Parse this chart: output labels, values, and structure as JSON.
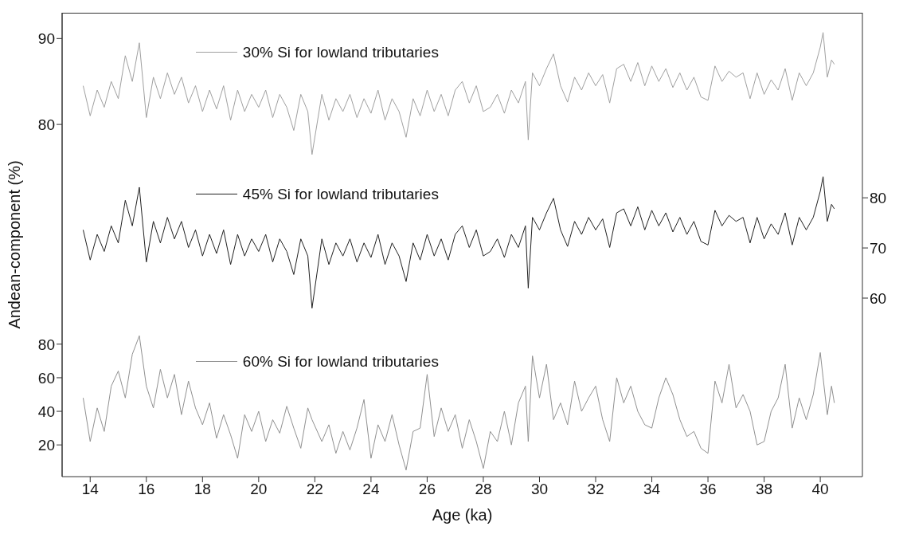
{
  "chart_data": {
    "type": "line",
    "xlabel": "Age (ka)",
    "ylabel": "Andean-component (%)",
    "xlim": [
      13,
      41.5
    ],
    "xticks": [
      14,
      16,
      18,
      20,
      22,
      24,
      26,
      28,
      30,
      32,
      34,
      36,
      38,
      40
    ],
    "ylim": [
      39,
      93
    ],
    "yticks": [
      80,
      90
    ],
    "y2lim": [
      24.4,
      116.9
    ],
    "y2ticks": [
      60,
      70,
      80
    ],
    "y3lim": [
      1.1,
      277.4
    ],
    "y3ticks": [
      20,
      40,
      60,
      80
    ],
    "legend": "top left",
    "series": [
      {
        "name": "30% Si for lowland tributaries",
        "color": "#a0a0a0",
        "axis": "y",
        "x": [
          13.75,
          14,
          14.25,
          14.5,
          14.75,
          15,
          15.25,
          15.5,
          15.75,
          16,
          16.25,
          16.5,
          16.75,
          17,
          17.25,
          17.5,
          17.75,
          18,
          18.25,
          18.5,
          18.75,
          19,
          19.25,
          19.5,
          19.75,
          20,
          20.25,
          20.5,
          20.75,
          21,
          21.25,
          21.5,
          21.75,
          21.9,
          22.25,
          22.5,
          22.75,
          23,
          23.25,
          23.5,
          23.75,
          24,
          24.25,
          24.5,
          24.75,
          25,
          25.25,
          25.5,
          25.75,
          26,
          26.25,
          26.5,
          26.75,
          27,
          27.25,
          27.5,
          27.75,
          28,
          28.25,
          28.5,
          28.75,
          29,
          29.25,
          29.5,
          29.6,
          29.75,
          30,
          30.25,
          30.5,
          30.75,
          31,
          31.25,
          31.5,
          31.75,
          32,
          32.25,
          32.5,
          32.75,
          33,
          33.25,
          33.5,
          33.75,
          34,
          34.25,
          34.5,
          34.75,
          35,
          35.25,
          35.5,
          35.75,
          36,
          36.25,
          36.5,
          36.75,
          37,
          37.25,
          37.5,
          37.75,
          38,
          38.25,
          38.5,
          38.75,
          39,
          39.25,
          39.5,
          39.75,
          40,
          40.1,
          40.25,
          40.4,
          40.5
        ],
        "values": [
          84.5,
          81,
          84,
          82,
          85,
          83,
          88,
          85,
          89.5,
          80.8,
          85.5,
          83,
          86,
          83.5,
          85.5,
          82.5,
          84.5,
          81.5,
          84,
          81.8,
          84.5,
          80.5,
          84,
          81.5,
          83.5,
          82,
          84,
          80.8,
          83.5,
          82,
          79.3,
          83.5,
          81.5,
          76.5,
          83.5,
          80.5,
          83,
          81.5,
          83.5,
          80.8,
          83,
          81.3,
          84,
          80.5,
          83,
          81.5,
          78.5,
          83,
          81,
          84,
          81.5,
          83.5,
          81,
          84,
          85,
          82.5,
          84.5,
          81.5,
          82,
          83.5,
          81.3,
          84,
          82.5,
          85,
          78.2,
          86,
          84.5,
          86.5,
          88.2,
          84.5,
          82.6,
          85.5,
          84,
          86,
          84.5,
          85.8,
          82.5,
          86.5,
          87,
          85,
          87.2,
          84.5,
          86.8,
          85,
          86.5,
          84.3,
          86,
          84,
          85.5,
          83.2,
          82.8,
          86.8,
          85,
          86.2,
          85.5,
          86,
          83,
          86,
          83.5,
          85.2,
          84,
          86.5,
          82.8,
          86,
          84.5,
          86,
          89,
          90.7,
          85.5,
          87.5,
          87
        ]
      },
      {
        "name": "45% Si for lowland tributaries",
        "color": "#202020",
        "axis": "y2",
        "x": [
          13.75,
          14,
          14.25,
          14.5,
          14.75,
          15,
          15.25,
          15.5,
          15.75,
          16,
          16.25,
          16.5,
          16.75,
          17,
          17.25,
          17.5,
          17.75,
          18,
          18.25,
          18.5,
          18.75,
          19,
          19.25,
          19.5,
          19.75,
          20,
          20.25,
          20.5,
          20.75,
          21,
          21.25,
          21.5,
          21.75,
          21.9,
          22.25,
          22.5,
          22.75,
          23,
          23.25,
          23.5,
          23.75,
          24,
          24.25,
          24.5,
          24.75,
          25,
          25.25,
          25.5,
          25.75,
          26,
          26.25,
          26.5,
          26.75,
          27,
          27.25,
          27.5,
          27.75,
          28,
          28.25,
          28.5,
          28.75,
          29,
          29.25,
          29.5,
          29.6,
          29.75,
          30,
          30.25,
          30.5,
          30.75,
          31,
          31.25,
          31.5,
          31.75,
          32,
          32.25,
          32.5,
          32.75,
          33,
          33.25,
          33.5,
          33.75,
          34,
          34.25,
          34.5,
          34.75,
          35,
          35.25,
          35.5,
          35.75,
          36,
          36.25,
          36.5,
          36.75,
          37,
          37.25,
          37.5,
          37.75,
          38,
          38.25,
          38.5,
          38.75,
          39,
          39.25,
          39.5,
          39.75,
          40,
          40.1,
          40.25,
          40.4,
          40.5
        ],
        "values": [
          73.6,
          67.6,
          72.7,
          69.3,
          74.4,
          71,
          79.5,
          74.4,
          82.1,
          67.2,
          75.3,
          71,
          76.1,
          71.8,
          75.3,
          70.1,
          73.6,
          68.4,
          72.7,
          68.9,
          73.6,
          66.7,
          72.7,
          68.4,
          71.8,
          69.3,
          72.7,
          67.2,
          71.8,
          69.3,
          64.7,
          71.8,
          68.4,
          58,
          71.8,
          66.7,
          71,
          68.4,
          71.8,
          67.2,
          71,
          68.1,
          72.7,
          66.7,
          71,
          68.4,
          63.3,
          71,
          67.6,
          72.7,
          68.4,
          71.8,
          67.6,
          72.7,
          74.4,
          70.1,
          73.6,
          68.4,
          69.3,
          71.8,
          68.1,
          72.7,
          70.1,
          74.4,
          62,
          76.1,
          73.6,
          77,
          79.9,
          73.6,
          70.3,
          75.3,
          72.7,
          76.1,
          73.6,
          75.8,
          70.1,
          77,
          77.8,
          74.4,
          78.2,
          73.6,
          77.5,
          74.4,
          77,
          73.2,
          76.1,
          72.7,
          75.3,
          71.3,
          70.6,
          77.5,
          74.4,
          76.5,
          75.3,
          76.1,
          71,
          76.1,
          71.8,
          74.8,
          72.7,
          77,
          70.6,
          76.1,
          73.6,
          76.1,
          81.3,
          84.2,
          75.3,
          78.7,
          77.8
        ]
      },
      {
        "name": "60% Si for lowland tributaries",
        "color": "#909090",
        "axis": "y3",
        "x": [
          13.75,
          14,
          14.25,
          14.5,
          14.75,
          15,
          15.25,
          15.5,
          15.75,
          16,
          16.25,
          16.5,
          16.75,
          17,
          17.25,
          17.5,
          17.75,
          18,
          18.25,
          18.5,
          18.75,
          19,
          19.25,
          19.5,
          19.75,
          20,
          20.25,
          20.5,
          20.75,
          21,
          21.25,
          21.5,
          21.75,
          21.9,
          22.25,
          22.5,
          22.75,
          23,
          23.25,
          23.5,
          23.75,
          24,
          24.25,
          24.5,
          24.75,
          25,
          25.25,
          25.5,
          25.75,
          26,
          26.25,
          26.5,
          26.75,
          27,
          27.25,
          27.5,
          27.75,
          28,
          28.25,
          28.5,
          28.75,
          29,
          29.25,
          29.5,
          29.6,
          29.75,
          30,
          30.25,
          30.5,
          30.75,
          31,
          31.25,
          31.5,
          31.75,
          32,
          32.25,
          32.5,
          32.75,
          33,
          33.25,
          33.5,
          33.75,
          34,
          34.25,
          34.5,
          34.75,
          35,
          35.25,
          35.5,
          35.75,
          36,
          36.25,
          36.5,
          36.75,
          37,
          37.25,
          37.5,
          37.75,
          38,
          38.25,
          38.5,
          38.75,
          39,
          39.25,
          39.5,
          39.75,
          40,
          40.1,
          40.25,
          40.4,
          40.5
        ],
        "values": [
          48,
          22,
          42,
          28,
          55,
          64,
          48,
          74,
          85,
          55,
          42,
          65,
          48,
          62,
          38,
          58,
          42,
          32,
          45,
          24,
          38,
          26,
          12,
          38,
          28,
          40,
          22,
          35,
          27,
          43,
          30,
          18,
          42,
          35,
          22,
          32,
          15,
          28,
          17,
          30,
          47,
          12,
          32,
          22,
          38,
          20,
          5,
          28,
          30,
          62,
          25,
          42,
          28,
          38,
          18,
          35,
          22,
          6,
          28,
          22,
          40,
          20,
          45,
          55,
          22,
          73,
          48,
          68,
          35,
          45,
          32,
          58,
          40,
          48,
          55,
          35,
          22,
          60,
          45,
          55,
          40,
          32,
          30,
          48,
          60,
          50,
          35,
          25,
          28,
          18,
          15,
          58,
          45,
          68,
          42,
          50,
          40,
          20,
          22,
          40,
          48,
          68,
          30,
          48,
          35,
          50,
          75,
          60,
          38,
          55,
          45
        ]
      }
    ]
  }
}
